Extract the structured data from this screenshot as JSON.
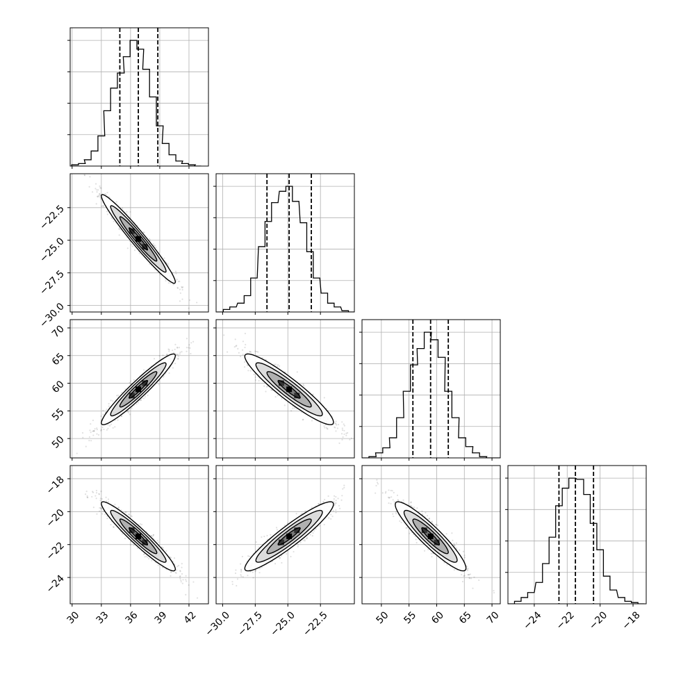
{
  "chart_data": {
    "type": "corner",
    "grid": true,
    "parameters": [
      {
        "index": 0,
        "range": [
          29.8,
          44.0
        ],
        "ticks": [
          30,
          33,
          36,
          39,
          42
        ],
        "tick_labels": [
          "30",
          "33",
          "36",
          "39",
          "42"
        ],
        "quantiles": [
          34.9,
          36.8,
          38.8
        ],
        "hist_centers": [
          30.3,
          31.0,
          31.6,
          32.3,
          33.0,
          33.6,
          34.3,
          35.0,
          35.6,
          36.3,
          37.0,
          37.6,
          38.3,
          39.0,
          39.6,
          40.3,
          41.0,
          41.6,
          42.3,
          42.9
        ],
        "hist_counts": [
          0.01,
          0.02,
          0.05,
          0.12,
          0.24,
          0.44,
          0.62,
          0.74,
          0.87,
          1.0,
          0.93,
          0.77,
          0.55,
          0.32,
          0.18,
          0.09,
          0.04,
          0.02,
          0.01,
          0.0
        ]
      },
      {
        "index": 1,
        "range": [
          -30.5,
          -19.9
        ],
        "ticks": [
          -30.0,
          -27.5,
          -25.0,
          -22.5
        ],
        "tick_labels": [
          "−30.0",
          "−27.5",
          "−25.0",
          "−22.5"
        ],
        "quantiles": [
          -26.6,
          -24.9,
          -23.2
        ],
        "hist_centers": [
          -30.2,
          -29.7,
          -29.2,
          -28.6,
          -28.1,
          -27.6,
          -27.0,
          -26.5,
          -26.0,
          -25.4,
          -24.9,
          -24.4,
          -23.8,
          -23.3,
          -22.8,
          -22.2,
          -21.7,
          -21.2,
          -20.6,
          -20.1
        ],
        "hist_counts": [
          0.0,
          0.02,
          0.04,
          0.07,
          0.13,
          0.27,
          0.52,
          0.72,
          0.87,
          0.96,
          1.0,
          0.88,
          0.71,
          0.48,
          0.27,
          0.15,
          0.07,
          0.04,
          0.01,
          0.0
        ]
      },
      {
        "index": 2,
        "range": [
          46.5,
          71.5
        ],
        "ticks": [
          50,
          55,
          60,
          65,
          70
        ],
        "tick_labels": [
          "50",
          "55",
          "60",
          "65",
          "70"
        ],
        "quantiles": [
          55.7,
          58.9,
          62.1
        ],
        "hist_centers": [
          47.1,
          48.4,
          49.6,
          50.9,
          52.1,
          53.4,
          54.6,
          55.9,
          57.1,
          58.4,
          59.6,
          60.9,
          62.1,
          63.4,
          64.6,
          65.9,
          67.1,
          68.4,
          69.6,
          70.9
        ],
        "hist_counts": [
          0.0,
          0.01,
          0.04,
          0.08,
          0.16,
          0.32,
          0.53,
          0.74,
          0.87,
          1.0,
          0.94,
          0.8,
          0.53,
          0.32,
          0.16,
          0.09,
          0.04,
          0.01,
          0.0,
          0.0
        ]
      },
      {
        "index": 3,
        "range": [
          -25.6,
          -17.2
        ],
        "ticks": [
          -24,
          -22,
          -20,
          -18
        ],
        "tick_labels": [
          "−24",
          "−22",
          "−20",
          "−18"
        ],
        "quantiles": [
          -22.5,
          -21.5,
          -20.4
        ],
        "hist_centers": [
          -25.4,
          -25.0,
          -24.6,
          -24.2,
          -23.7,
          -23.3,
          -22.9,
          -22.5,
          -22.1,
          -21.7,
          -21.2,
          -20.8,
          -20.4,
          -20.0,
          -19.6,
          -19.2,
          -18.7,
          -18.3,
          -17.9,
          -17.5
        ],
        "hist_counts": [
          0.0,
          0.02,
          0.05,
          0.09,
          0.17,
          0.32,
          0.53,
          0.78,
          0.92,
          1.0,
          0.99,
          0.87,
          0.64,
          0.43,
          0.22,
          0.11,
          0.05,
          0.02,
          0.01,
          0.0
        ]
      }
    ],
    "pairs": [
      {
        "x": 0,
        "y": 1,
        "mean": [
          36.8,
          -24.9
        ],
        "sd": [
          1.9,
          1.7
        ],
        "corr": -0.97
      },
      {
        "x": 0,
        "y": 2,
        "mean": [
          36.8,
          58.9
        ],
        "sd": [
          1.9,
          3.2
        ],
        "corr": 0.95
      },
      {
        "x": 1,
        "y": 2,
        "mean": [
          -24.9,
          58.9
        ],
        "sd": [
          1.7,
          3.2
        ],
        "corr": -0.93
      },
      {
        "x": 0,
        "y": 3,
        "mean": [
          36.8,
          -21.5
        ],
        "sd": [
          1.9,
          1.05
        ],
        "corr": -0.95
      },
      {
        "x": 1,
        "y": 3,
        "mean": [
          -24.9,
          -21.5
        ],
        "sd": [
          1.7,
          1.05
        ],
        "corr": 0.93
      },
      {
        "x": 2,
        "y": 3,
        "mean": [
          58.9,
          -21.5
        ],
        "sd": [
          3.2,
          1.05
        ],
        "corr": -0.92
      }
    ],
    "contour_levels_sigma": [
      0.5,
      1.0,
      1.5,
      2.0
    ],
    "xlabel": "",
    "ylabel": "",
    "title": ""
  }
}
